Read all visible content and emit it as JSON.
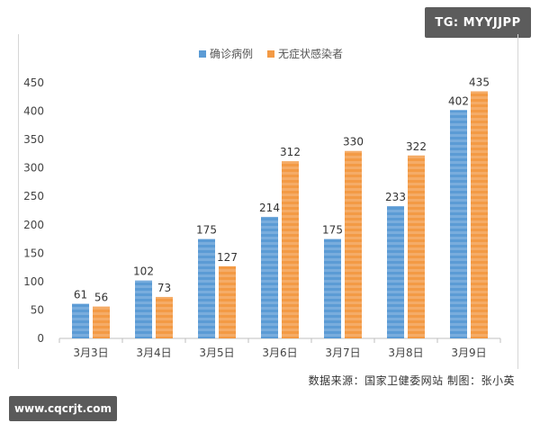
{
  "watermarks": {
    "top_right": "TG: MYYJJPP",
    "bottom_left": "www.cqcrjt.com"
  },
  "source_note": "数据来源：国家卫健委网站  制图：张小英",
  "colors": {
    "series_blue": "#5b9bd5",
    "series_orange": "#f39a45",
    "axis": "#bfbfbf",
    "text": "#333333"
  },
  "chart_data": {
    "type": "bar",
    "title": "",
    "xlabel": "",
    "ylabel": "",
    "ylim": [
      0,
      450
    ],
    "yticks": [
      0,
      50,
      100,
      150,
      200,
      250,
      300,
      350,
      400,
      450
    ],
    "grid": false,
    "legend_position": "top-center",
    "categories": [
      "3月3日",
      "3月4日",
      "3月5日",
      "3月6日",
      "3月7日",
      "3月8日",
      "3月9日"
    ],
    "series": [
      {
        "name": "确诊病例",
        "color": "#5b9bd5",
        "values": [
          61,
          102,
          175,
          214,
          175,
          233,
          402
        ]
      },
      {
        "name": "无症状感染者",
        "color": "#f39a45",
        "values": [
          56,
          73,
          127,
          312,
          330,
          322,
          435
        ]
      }
    ]
  }
}
